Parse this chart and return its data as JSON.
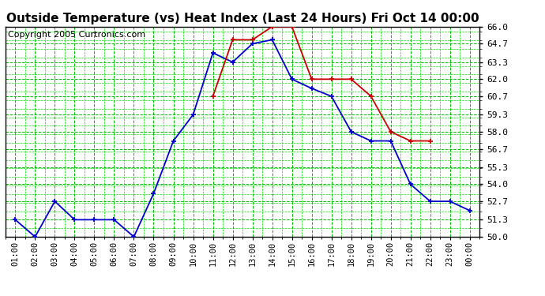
{
  "title": "Outside Temperature (vs) Heat Index (Last 24 Hours) Fri Oct 14 00:00",
  "copyright": "Copyright 2005 Curtronics.com",
  "x_labels": [
    "01:00",
    "02:00",
    "03:00",
    "04:00",
    "05:00",
    "06:00",
    "07:00",
    "08:00",
    "09:00",
    "10:00",
    "11:00",
    "12:00",
    "13:00",
    "14:00",
    "15:00",
    "16:00",
    "17:00",
    "18:00",
    "19:00",
    "20:00",
    "21:00",
    "22:00",
    "23:00",
    "00:00"
  ],
  "blue_values": [
    51.3,
    50.0,
    52.7,
    51.3,
    51.3,
    51.3,
    50.0,
    53.3,
    57.3,
    59.3,
    64.0,
    63.3,
    64.7,
    65.0,
    62.0,
    61.3,
    60.7,
    58.0,
    57.3,
    57.3,
    54.0,
    52.7,
    52.7,
    52.0
  ],
  "red_values": [
    null,
    null,
    null,
    null,
    null,
    null,
    null,
    null,
    null,
    null,
    60.7,
    65.0,
    65.0,
    66.0,
    66.0,
    62.0,
    62.0,
    62.0,
    60.7,
    58.0,
    57.3,
    57.3,
    null,
    null
  ],
  "ylim": [
    50.0,
    66.0
  ],
  "yticks": [
    50.0,
    51.3,
    52.7,
    54.0,
    55.3,
    56.7,
    58.0,
    59.3,
    60.7,
    62.0,
    63.3,
    64.7,
    66.0
  ],
  "blue_color": "#0000cc",
  "red_color": "#cc0000",
  "bg_color": "#ffffff",
  "plot_bg_color": "#ffffff",
  "grid_major_color": "#00bb00",
  "grid_minor_color": "#00dd00",
  "title_fontsize": 11,
  "copyright_fontsize": 8
}
